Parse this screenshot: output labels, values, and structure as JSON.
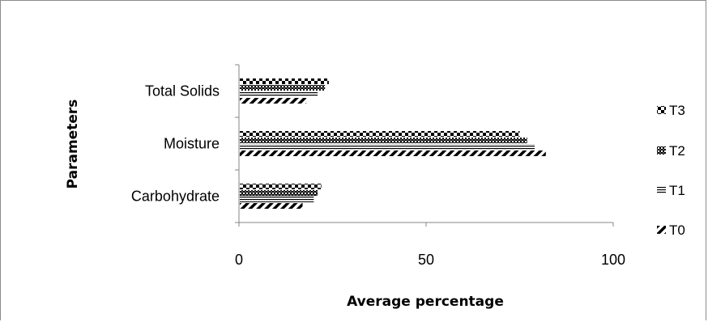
{
  "chart_data": {
    "type": "bar",
    "orientation": "horizontal",
    "title": "",
    "xlabel": "Average percentage",
    "ylabel": "Parameters",
    "categories": [
      "Carbohydrate",
      "Moisture",
      "Total Solids"
    ],
    "x_ticks": [
      "0",
      "50",
      "100"
    ],
    "xlim": [
      0,
      100
    ],
    "series": [
      {
        "name": "T0",
        "values": [
          17,
          82,
          18
        ],
        "pattern": "diagonal-stripes"
      },
      {
        "name": "T1",
        "values": [
          20,
          79,
          21
        ],
        "pattern": "horizontal-lines"
      },
      {
        "name": "T2",
        "values": [
          21,
          77,
          23
        ],
        "pattern": "dense-checker"
      },
      {
        "name": "T3",
        "values": [
          22,
          75,
          24
        ],
        "pattern": "checkerboard"
      }
    ],
    "legend_order": [
      "T3",
      "T2",
      "T1",
      "T0"
    ],
    "legend_position": "right",
    "grid": false
  }
}
